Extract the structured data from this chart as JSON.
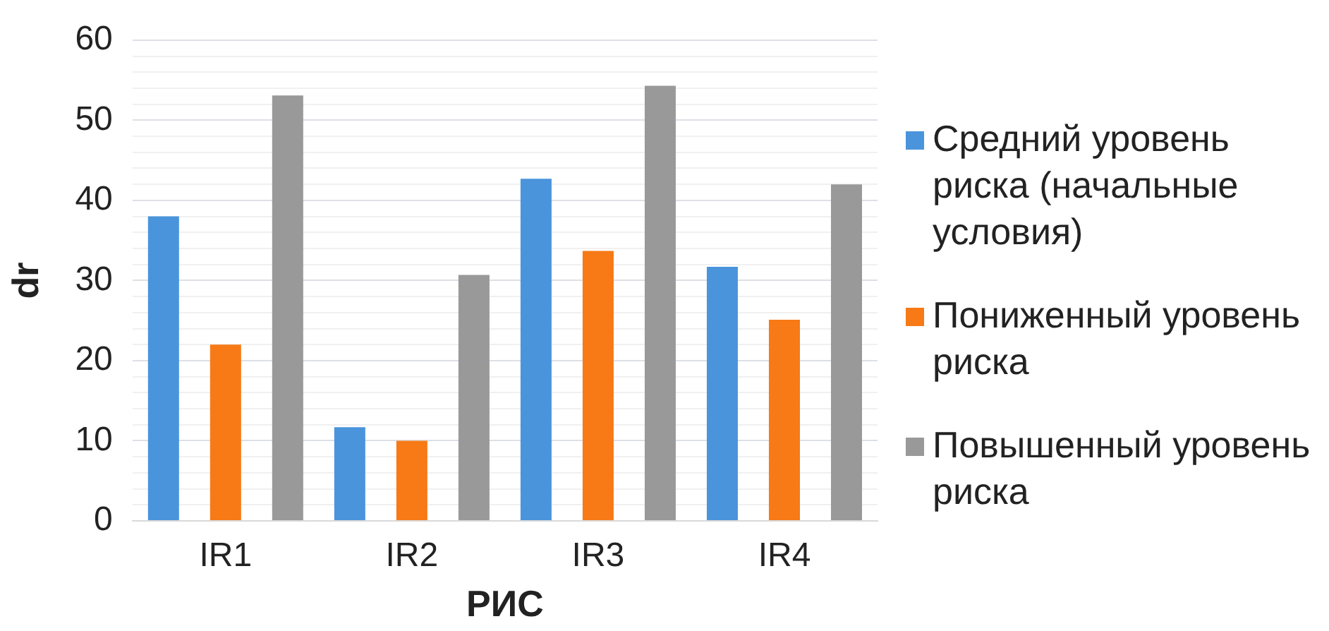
{
  "chart_data": {
    "type": "bar",
    "xlabel": "РИС",
    "ylabel": "dr",
    "categories": [
      "IR1",
      "IR2",
      "IR3",
      "IR4"
    ],
    "series": [
      {
        "name": "Средний уровень риска (начальные условия)",
        "color": "#4a94dc",
        "values": [
          38,
          11.7,
          42.7,
          31.7
        ]
      },
      {
        "name": "Пониженный уровень риска",
        "color": "#f77a16",
        "values": [
          22,
          10,
          33.7,
          25.1
        ]
      },
      {
        "name": "Повышенный уровень риска",
        "color": "#999999",
        "values": [
          53.1,
          30.7,
          54.3,
          42
        ]
      }
    ],
    "ylim": [
      0,
      60
    ],
    "yticks": [
      0,
      {
        "value": 2,
        "label": null
      },
      {
        "value": 4,
        "label": null
      },
      {
        "value": 6,
        "label": null
      },
      {
        "value": 8,
        "label": null
      },
      10,
      {
        "value": 12,
        "label": null
      },
      {
        "value": 14,
        "label": null
      },
      {
        "value": 16,
        "label": null
      },
      {
        "value": 18,
        "label": null
      },
      20,
      {
        "value": 22,
        "label": null
      },
      {
        "value": 24,
        "label": null
      },
      {
        "value": 26,
        "label": null
      },
      {
        "value": 28,
        "label": null
      },
      30,
      {
        "value": 32,
        "label": null
      },
      {
        "value": 34,
        "label": null
      },
      {
        "value": 36,
        "label": null
      },
      {
        "value": 38,
        "label": null
      },
      40,
      {
        "value": 42,
        "label": null
      },
      {
        "value": 44,
        "label": null
      },
      {
        "value": 46,
        "label": null
      },
      {
        "value": 48,
        "label": null
      },
      50,
      {
        "value": 52,
        "label": null
      },
      {
        "value": 54,
        "label": null
      },
      {
        "value": 56,
        "label": null
      },
      {
        "value": 58,
        "label": null
      },
      60
    ],
    "grid": "y",
    "legend": "right"
  }
}
